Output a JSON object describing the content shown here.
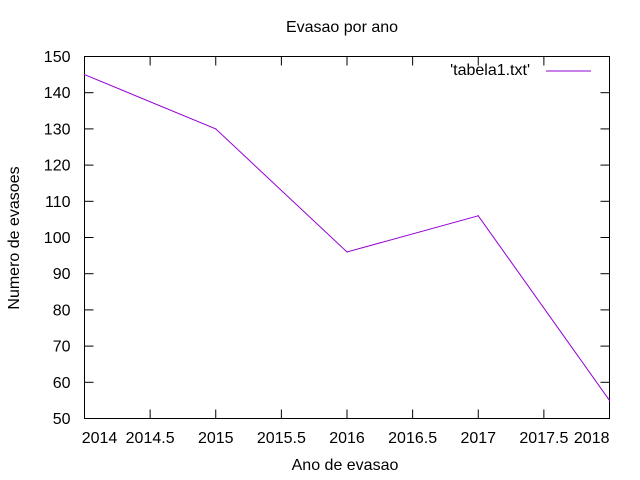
{
  "chart_data": {
    "type": "line",
    "title": "Evasao por ano",
    "xlabel": "Ano de evasao",
    "ylabel": "Numero de evasoes",
    "xlim": [
      2014,
      2018
    ],
    "ylim": [
      50,
      150
    ],
    "x_ticks": [
      2014,
      2014.5,
      2015,
      2015.5,
      2016,
      2016.5,
      2017,
      2017.5,
      2018
    ],
    "y_ticks": [
      50,
      60,
      70,
      80,
      90,
      100,
      110,
      120,
      130,
      140,
      150
    ],
    "grid": false,
    "legend_position": "top-right",
    "series": [
      {
        "name": "'tabela1.txt'",
        "color": "#9400d3",
        "x": [
          2014,
          2015,
          2016,
          2017,
          2018
        ],
        "y": [
          145,
          130,
          96,
          106,
          55
        ]
      }
    ]
  }
}
